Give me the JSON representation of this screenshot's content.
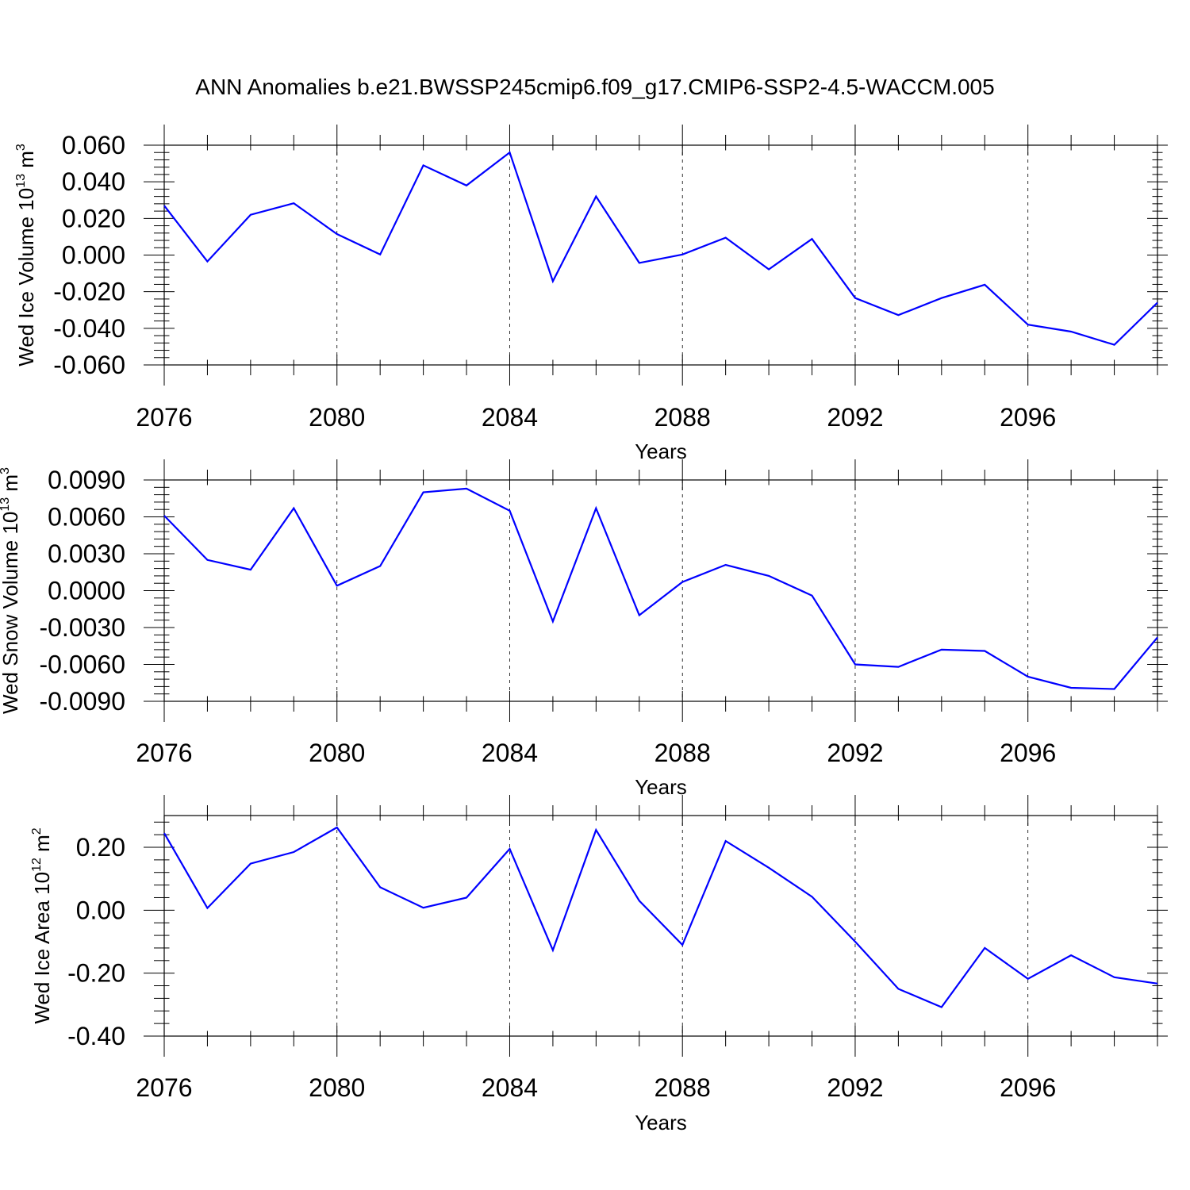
{
  "figure_title": "ANN Anomalies b.e21.BWSSP245cmip6.f09_g17.CMIP6-SSP2-4.5-WACCM.005",
  "line_color": "#0000ff",
  "chart_data": [
    {
      "type": "line",
      "xlabel": "Years",
      "ylabel_main": "Wed Ice Volume 10",
      "ylabel_exp": "13",
      "ylabel_unit": " m",
      "ylabel_unit_exp": "3",
      "xlim": [
        2076,
        2099
      ],
      "ylim": [
        -0.06,
        0.06
      ],
      "x_ticks": [
        2076,
        2080,
        2084,
        2088,
        2092,
        2096
      ],
      "x_tick_labels": [
        "2076",
        "2080",
        "2084",
        "2088",
        "2092",
        "2096"
      ],
      "y_ticks": [
        -0.06,
        -0.04,
        -0.02,
        0.0,
        0.02,
        0.04,
        0.06
      ],
      "y_tick_labels": [
        "-0.060",
        "-0.040",
        "-0.020",
        "0.000",
        "0.020",
        "0.040",
        "0.060"
      ],
      "grid": "vertical dashed at labeled years",
      "x": [
        2076,
        2077,
        2078,
        2079,
        2080,
        2081,
        2082,
        2083,
        2084,
        2085,
        2086,
        2087,
        2088,
        2089,
        2090,
        2091,
        2092,
        2093,
        2094,
        2095,
        2096,
        2097,
        2098,
        2099
      ],
      "y": [
        0.027,
        -0.0035,
        0.022,
        0.0283,
        0.0115,
        0.0003,
        0.049,
        0.038,
        0.056,
        -0.0143,
        0.032,
        -0.0043,
        0.0003,
        0.0095,
        -0.0078,
        0.0088,
        -0.0235,
        -0.0328,
        -0.0235,
        -0.0162,
        -0.038,
        -0.0418,
        -0.049,
        -0.026
      ]
    },
    {
      "type": "line",
      "xlabel": "Years",
      "ylabel_main": "Wed Snow Volume 10",
      "ylabel_exp": "13",
      "ylabel_unit": " m",
      "ylabel_unit_exp": "3",
      "xlim": [
        2076,
        2099
      ],
      "ylim": [
        -0.009,
        0.009
      ],
      "x_ticks": [
        2076,
        2080,
        2084,
        2088,
        2092,
        2096
      ],
      "x_tick_labels": [
        "2076",
        "2080",
        "2084",
        "2088",
        "2092",
        "2096"
      ],
      "y_ticks": [
        -0.009,
        -0.006,
        -0.003,
        0.0,
        0.003,
        0.006,
        0.009
      ],
      "y_tick_labels": [
        "-0.0090",
        "-0.0060",
        "-0.0030",
        "0.0000",
        "0.0030",
        "0.0060",
        "0.0090"
      ],
      "grid": "vertical dashed at labeled years",
      "x": [
        2076,
        2077,
        2078,
        2079,
        2080,
        2081,
        2082,
        2083,
        2084,
        2085,
        2086,
        2087,
        2088,
        2089,
        2090,
        2091,
        2092,
        2093,
        2094,
        2095,
        2096,
        2097,
        2098,
        2099
      ],
      "y": [
        0.0061,
        0.0025,
        0.0017,
        0.0067,
        0.0004,
        0.002,
        0.008,
        0.0083,
        0.0065,
        -0.0025,
        0.0067,
        -0.002,
        0.0007,
        0.0021,
        0.0012,
        -0.0004,
        -0.006,
        -0.0062,
        -0.0048,
        -0.0049,
        -0.007,
        -0.0079,
        -0.008,
        -0.0038
      ]
    },
    {
      "type": "line",
      "xlabel": "Years",
      "ylabel_main": "Wed Ice Area 10",
      "ylabel_exp": "12",
      "ylabel_unit": " m",
      "ylabel_unit_exp": "2",
      "xlim": [
        2076,
        2099
      ],
      "ylim": [
        -0.4,
        0.3
      ],
      "x_ticks": [
        2076,
        2080,
        2084,
        2088,
        2092,
        2096
      ],
      "x_tick_labels": [
        "2076",
        "2080",
        "2084",
        "2088",
        "2092",
        "2096"
      ],
      "y_ticks": [
        -0.4,
        -0.2,
        0.0,
        0.2
      ],
      "y_tick_labels": [
        "-0.40",
        "-0.20",
        "0.00",
        "0.20"
      ],
      "grid": "vertical dashed at labeled years",
      "x": [
        2076,
        2077,
        2078,
        2079,
        2080,
        2081,
        2082,
        2083,
        2084,
        2085,
        2086,
        2087,
        2088,
        2089,
        2090,
        2091,
        2092,
        2093,
        2094,
        2095,
        2096,
        2097,
        2098,
        2099
      ],
      "y": [
        0.245,
        0.007,
        0.148,
        0.185,
        0.263,
        0.073,
        0.008,
        0.04,
        0.195,
        -0.127,
        0.255,
        0.03,
        -0.11,
        0.22,
        0.135,
        0.043,
        -0.1,
        -0.25,
        -0.308,
        -0.12,
        -0.218,
        -0.143,
        -0.213,
        -0.233
      ]
    }
  ]
}
